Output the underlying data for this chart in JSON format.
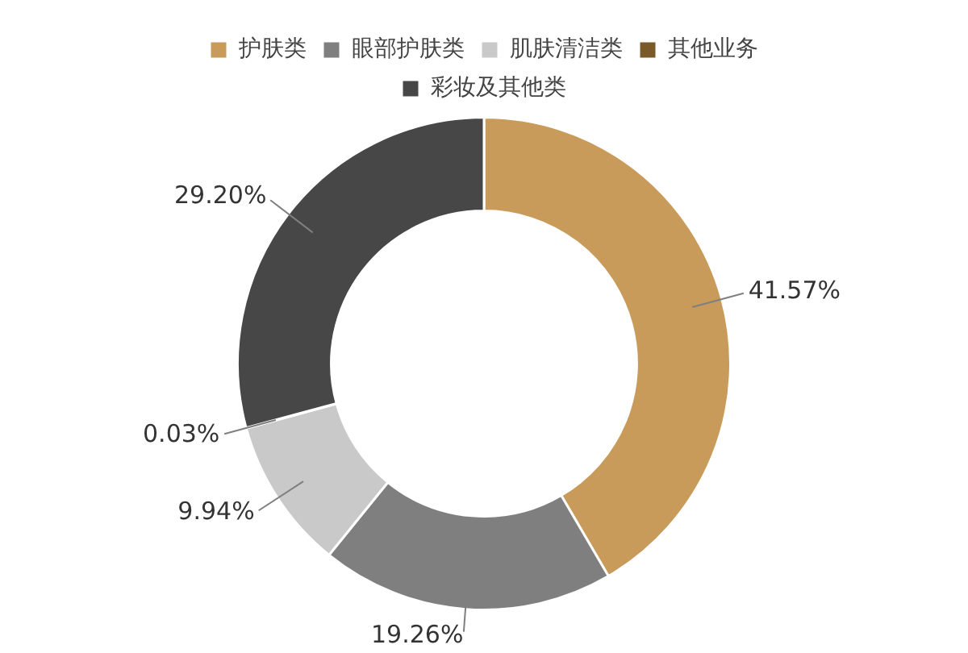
{
  "chart_data": {
    "type": "donut",
    "categories": [
      "护肤类",
      "眼部护肤类",
      "肌肤清洁类",
      "其他业务",
      "彩妆及其他类"
    ],
    "values": [
      41.57,
      19.26,
      9.94,
      0.03,
      29.2
    ],
    "colors": [
      "#c89b5a",
      "#7f7f7f",
      "#c9c9c9",
      "#7b5a2a",
      "#474747"
    ],
    "value_labels": [
      "41.57%",
      "19.26%",
      "9.94%",
      "0.03%",
      "29.20%"
    ],
    "legend": "top"
  }
}
